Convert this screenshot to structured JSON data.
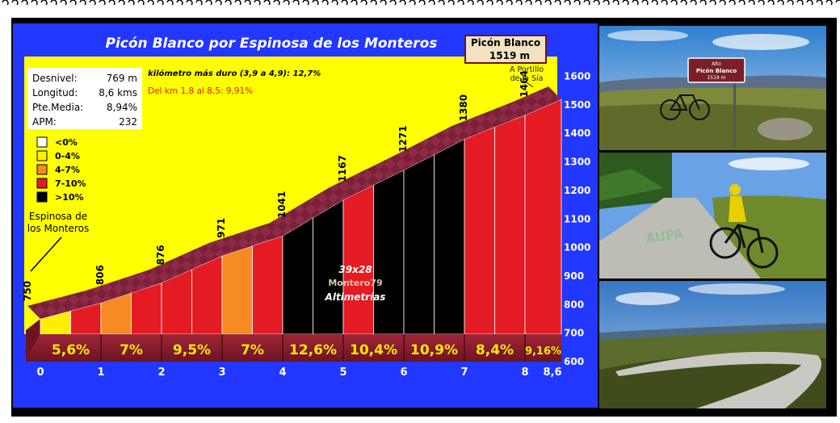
{
  "title": "Picón Blanco por Espinosa de los Monteros",
  "summit": {
    "name": "Picón Blanco",
    "altitude": "1519 m"
  },
  "stats": [
    {
      "label": "Desnivel:",
      "value": "769 m"
    },
    {
      "label": "Longitud:",
      "value": "8,6 kms"
    },
    {
      "label": "Pte.Media:",
      "value": "8,94%"
    },
    {
      "label": "APM:",
      "value": "232"
    }
  ],
  "notes": {
    "hardest_km": "kilómetro más duro (3,9 a 4,9):  12,7%",
    "stretch": "Del km 1,8 al 8,5: 9,91%"
  },
  "legend": [
    {
      "label": "<0%",
      "color": "#ffffff"
    },
    {
      "label": "0-4%",
      "color": "#ffee00"
    },
    {
      "label": "4-7%",
      "color": "#f58b22"
    },
    {
      "label": "7-10%",
      "color": "#e41b23"
    },
    {
      "label": ">10%",
      "color": "#000000"
    }
  ],
  "start_label": "Espinosa de los Monteros",
  "pass_label": "A Portillo de la Sía",
  "watermark": {
    "line1": "39x28",
    "line2": "Montero79",
    "line3": "Altimetrías"
  },
  "colors": {
    "background": "#2237ff",
    "sky": "#ffff00",
    "ridge": "#7a2038",
    "segment_band": "#8b1d2d"
  },
  "chart_data": {
    "type": "area",
    "title": "Picón Blanco por Espinosa de los Monteros",
    "x_ticks": [
      "0",
      "1",
      "2",
      "3",
      "4",
      "5",
      "6",
      "7",
      "8",
      "8,6"
    ],
    "y_ticks": [
      "600",
      "700",
      "800",
      "900",
      "1000",
      "1100",
      "1200",
      "1300",
      "1400",
      "1500",
      "1600"
    ],
    "ylim": [
      600,
      1650
    ],
    "xlim": [
      0,
      8.6
    ],
    "profile": [
      {
        "km": 0,
        "alt": 750
      },
      {
        "km": 1,
        "alt": 806
      },
      {
        "km": 2,
        "alt": 876
      },
      {
        "km": 3,
        "alt": 971
      },
      {
        "km": 4,
        "alt": 1041
      },
      {
        "km": 5,
        "alt": 1167
      },
      {
        "km": 6,
        "alt": 1271
      },
      {
        "km": 7,
        "alt": 1380
      },
      {
        "km": 8,
        "alt": 1464
      },
      {
        "km": 8.6,
        "alt": 1519
      }
    ],
    "point_labels": [
      "750",
      "806",
      "876",
      "971",
      "1041",
      "1167",
      "1271",
      "1380",
      "1464"
    ],
    "segments": [
      {
        "from": 0,
        "to": 1,
        "grade": "5,6%"
      },
      {
        "from": 1,
        "to": 2,
        "grade": "7%"
      },
      {
        "from": 2,
        "to": 3,
        "grade": "9,5%"
      },
      {
        "from": 3,
        "to": 4,
        "grade": "7%"
      },
      {
        "from": 4,
        "to": 5,
        "grade": "12,6%"
      },
      {
        "from": 5,
        "to": 6,
        "grade": "10,4%"
      },
      {
        "from": 6,
        "to": 7,
        "grade": "10,9%"
      },
      {
        "from": 7,
        "to": 8,
        "grade": "8,4%"
      },
      {
        "from": 8,
        "to": 8.6,
        "grade": "9,16%"
      }
    ],
    "fill_strips": [
      {
        "from": 0,
        "to": 0.5,
        "color": "#ffee00"
      },
      {
        "from": 0.5,
        "to": 1,
        "color": "#e41b23"
      },
      {
        "from": 1,
        "to": 1.5,
        "color": "#f58b22"
      },
      {
        "from": 1.5,
        "to": 2,
        "color": "#e41b23"
      },
      {
        "from": 2,
        "to": 2.5,
        "color": "#e41b23"
      },
      {
        "from": 2.5,
        "to": 3,
        "color": "#e41b23"
      },
      {
        "from": 3,
        "to": 3.5,
        "color": "#f58b22"
      },
      {
        "from": 3.5,
        "to": 4,
        "color": "#e41b23"
      },
      {
        "from": 4,
        "to": 4.5,
        "color": "#000000"
      },
      {
        "from": 4.5,
        "to": 5,
        "color": "#000000"
      },
      {
        "from": 5,
        "to": 5.5,
        "color": "#e41b23"
      },
      {
        "from": 5.5,
        "to": 6,
        "color": "#000000"
      },
      {
        "from": 6,
        "to": 6.5,
        "color": "#000000"
      },
      {
        "from": 6.5,
        "to": 7,
        "color": "#000000"
      },
      {
        "from": 7,
        "to": 7.5,
        "color": "#e41b23"
      },
      {
        "from": 7.5,
        "to": 8,
        "color": "#e41b23"
      },
      {
        "from": 8,
        "to": 8.6,
        "color": "#e41b23"
      }
    ]
  },
  "photos": [
    {
      "sign_line1": "Alto",
      "sign_line2": "Picón Blanco",
      "sign_line3": "1519 m"
    },
    {
      "road_text": "AUPA"
    },
    {}
  ]
}
